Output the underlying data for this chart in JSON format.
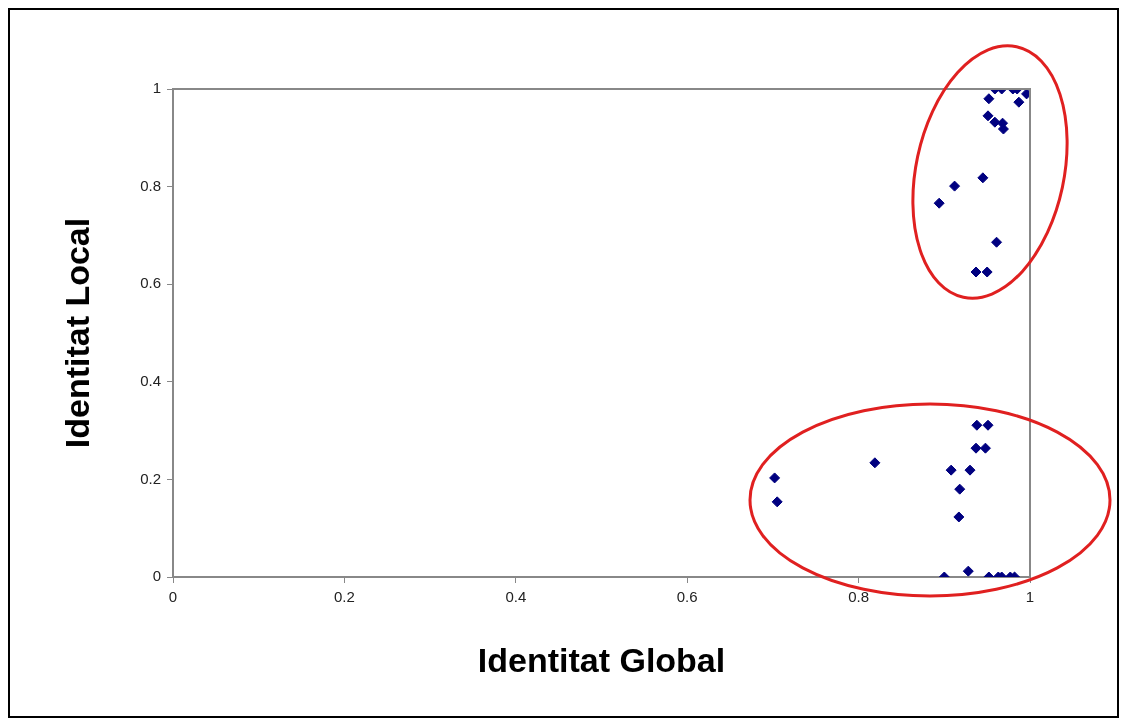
{
  "chart_data": {
    "type": "scatter",
    "xlabel": "Identitat Global",
    "ylabel": "Identitat Local",
    "x": [
      0.702,
      0.705,
      0.819,
      0.908,
      0.93,
      0.918,
      0.917,
      0.937,
      0.948,
      0.938,
      0.951,
      0.9,
      0.928,
      0.952,
      0.963,
      0.967,
      0.977,
      0.982,
      0.959,
      0.967,
      0.98,
      0.985,
      0.996,
      0.987,
      0.952,
      0.951,
      0.959,
      0.968,
      0.969,
      0.945,
      0.912,
      0.894,
      0.961,
      0.937,
      0.95
    ],
    "values": [
      0.203,
      0.154,
      0.234,
      0.219,
      0.219,
      0.18,
      0.123,
      0.264,
      0.264,
      0.311,
      0.311,
      0,
      0.012,
      0,
      0,
      0,
      0,
      0,
      1,
      1,
      1,
      1,
      0.99,
      0.973,
      0.98,
      0.945,
      0.932,
      0.93,
      0.918,
      0.818,
      0.801,
      0.766,
      0.686,
      0.625,
      0.625
    ],
    "color": "#000080",
    "marker": "diamond",
    "grid": false,
    "legend": false,
    "xlim": [
      0,
      1
    ],
    "ylim": [
      0,
      1
    ],
    "xticks": [
      0,
      0.2,
      0.4,
      0.6,
      0.8,
      1
    ],
    "yticks": [
      0,
      0.2,
      0.4,
      0.6,
      0.8,
      1
    ]
  }
}
